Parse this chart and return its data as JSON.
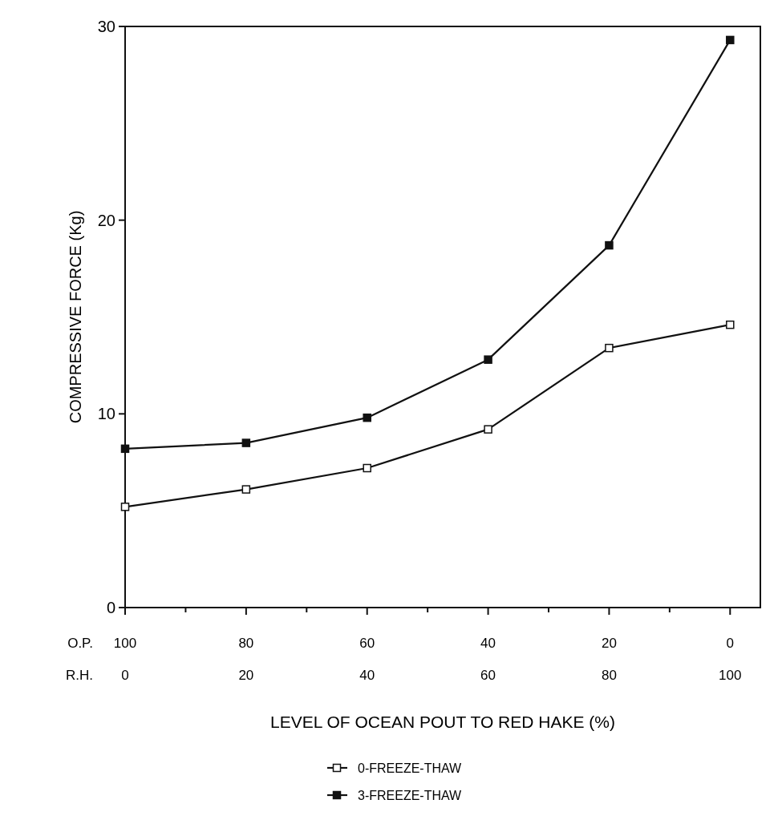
{
  "chart_data": {
    "type": "line",
    "xlabel": "LEVEL OF OCEAN POUT TO RED HAKE (%)",
    "ylabel": "COMPRESSIVE FORCE  (Kg)",
    "x": [
      100,
      80,
      60,
      40,
      20,
      0
    ],
    "xlim": [
      100,
      -5
    ],
    "xticks": [
      100,
      {
        "value": 90,
        "label": null
      },
      80,
      {
        "value": 70,
        "label": null
      },
      60,
      {
        "value": 50,
        "label": null
      },
      40,
      {
        "value": 30,
        "label": null
      },
      20,
      {
        "value": 10,
        "label": null
      },
      0
    ],
    "x2lim": [
      0,
      105
    ],
    "x2ticks": [
      0,
      20,
      40,
      60,
      80,
      100
    ],
    "ylim": [
      0,
      30
    ],
    "yticks": [
      0,
      10,
      20,
      30
    ],
    "annotations": [
      "O.P.",
      "R.H."
    ],
    "marker": "square",
    "line_style": "solid",
    "legend": "bottom",
    "grid": false,
    "series": [
      {
        "name": "0-FREEZE-THAW",
        "color": "#111111",
        "values": [
          5.2,
          6.1,
          7.2,
          9.2,
          13.4,
          14.6
        ]
      },
      {
        "name": "3-FREEZE-THAW",
        "color": "#111111",
        "values": [
          8.2,
          8.5,
          9.8,
          12.8,
          18.7,
          29.3
        ]
      }
    ]
  }
}
